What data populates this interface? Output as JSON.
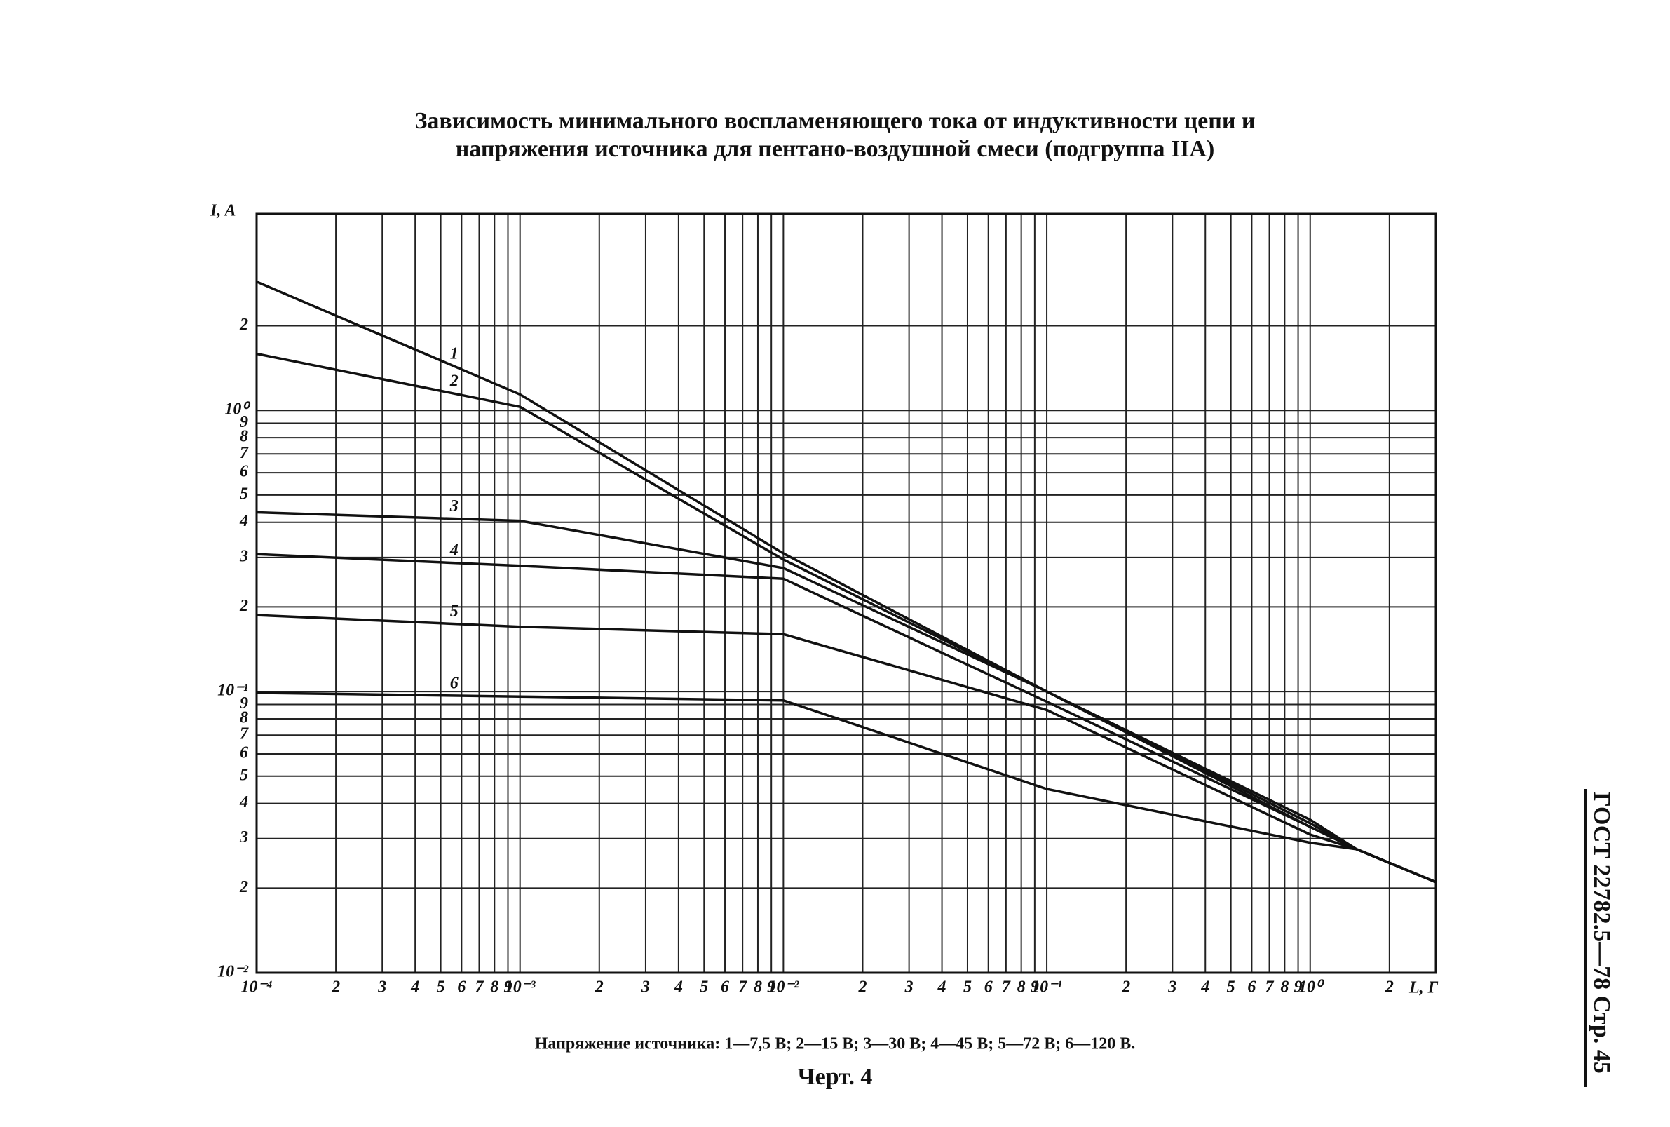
{
  "chart_data": {
    "type": "line",
    "title": "Зависимость минимального воспламеняющего тока от индуктивности цепи и",
    "subtitle": "напряжения источника для пентано-воздушной смеси (подгруппа IIA)",
    "y_label": "I, A",
    "x_label": "L, Г",
    "log_x": true,
    "log_y": true,
    "grid": true,
    "x": [
      0.0001,
      0.001,
      0.01,
      0.1,
      1,
      1.5,
      3
    ],
    "series": [
      {
        "name": "1",
        "color": "#111111",
        "values": [
          2.87,
          1.14,
          0.31,
          0.1,
          0.035,
          0.0275,
          0.021
        ]
      },
      {
        "name": "2",
        "color": "#111111",
        "values": [
          1.59,
          1.03,
          0.295,
          0.1,
          0.034,
          0.0275,
          0.021
        ]
      },
      {
        "name": "3",
        "color": "#111111",
        "values": [
          0.434,
          0.405,
          0.275,
          0.1,
          0.033,
          0.0275,
          0.021
        ]
      },
      {
        "name": "4",
        "color": "#111111",
        "values": [
          0.308,
          0.28,
          0.252,
          0.092,
          0.033,
          0.0275,
          0.021
        ]
      },
      {
        "name": "5",
        "color": "#111111",
        "values": [
          0.187,
          0.17,
          0.16,
          0.086,
          0.031,
          0.0275,
          0.021
        ]
      },
      {
        "name": "6",
        "color": "#111111",
        "values": [
          0.099,
          0.096,
          0.093,
          0.045,
          0.029,
          0.0275,
          0.021
        ]
      }
    ],
    "xlim": [
      0.0001,
      3
    ],
    "ylim": [
      0.01,
      5
    ],
    "xticks": [
      {
        "value": 0.0001,
        "label": "10⁻⁴"
      },
      {
        "value": 0.0002,
        "label": "2"
      },
      {
        "value": 0.0003,
        "label": "3"
      },
      {
        "value": 0.0004,
        "label": "4"
      },
      {
        "value": 0.0005,
        "label": "5"
      },
      {
        "value": 0.0006,
        "label": "6"
      },
      {
        "value": 0.0007,
        "label": "7"
      },
      {
        "value": 0.0008,
        "label": "8"
      },
      {
        "value": 0.0009,
        "label": "9"
      },
      {
        "value": 0.001,
        "label": "10⁻³"
      },
      {
        "value": 0.002,
        "label": "2"
      },
      {
        "value": 0.003,
        "label": "3"
      },
      {
        "value": 0.004,
        "label": "4"
      },
      {
        "value": 0.005,
        "label": "5"
      },
      {
        "value": 0.006,
        "label": "6"
      },
      {
        "value": 0.007,
        "label": "7"
      },
      {
        "value": 0.008,
        "label": "8"
      },
      {
        "value": 0.009,
        "label": "9"
      },
      {
        "value": 0.01,
        "label": "10⁻²"
      },
      {
        "value": 0.02,
        "label": "2"
      },
      {
        "value": 0.03,
        "label": "3"
      },
      {
        "value": 0.04,
        "label": "4"
      },
      {
        "value": 0.05,
        "label": "5"
      },
      {
        "value": 0.06,
        "label": "6"
      },
      {
        "value": 0.07,
        "label": "7"
      },
      {
        "value": 0.08,
        "label": "8"
      },
      {
        "value": 0.09,
        "label": "9"
      },
      {
        "value": 0.1,
        "label": "10⁻¹"
      },
      {
        "value": 0.2,
        "label": "2"
      },
      {
        "value": 0.3,
        "label": "3"
      },
      {
        "value": 0.4,
        "label": "4"
      },
      {
        "value": 0.5,
        "label": "5"
      },
      {
        "value": 0.6,
        "label": "6"
      },
      {
        "value": 0.7,
        "label": "7"
      },
      {
        "value": 0.8,
        "label": "8"
      },
      {
        "value": 0.9,
        "label": "9"
      },
      {
        "value": 1,
        "label": "10⁰"
      },
      2
    ],
    "yticks": [
      {
        "value": 0.01,
        "label": "10⁻²"
      },
      {
        "value": 0.02,
        "label": "2"
      },
      {
        "value": 0.03,
        "label": "3"
      },
      {
        "value": 0.04,
        "label": "4"
      },
      {
        "value": 0.05,
        "label": "5"
      },
      {
        "value": 0.06,
        "label": "6"
      },
      {
        "value": 0.07,
        "label": "7"
      },
      {
        "value": 0.08,
        "label": "8"
      },
      {
        "value": 0.09,
        "label": "9"
      },
      {
        "value": 0.1,
        "label": "10⁻¹"
      },
      {
        "value": 0.2,
        "label": "2"
      },
      {
        "value": 0.3,
        "label": "3"
      },
      {
        "value": 0.4,
        "label": "4"
      },
      {
        "value": 0.5,
        "label": "5"
      },
      {
        "value": 0.6,
        "label": "6"
      },
      {
        "value": 0.7,
        "label": "7"
      },
      {
        "value": 0.8,
        "label": "8"
      },
      {
        "value": 0.9,
        "label": "9"
      },
      {
        "value": 1,
        "label": "10⁰"
      },
      2
    ],
    "caption": "Напряжение источника: 1—7,5 В; 2—15 В; 3—30 В; 4—45 В; 5—72 В; 6—120 В.",
    "figure_label": "Черт. 4",
    "page_header": "ГОСТ 22782.5—78 Стр. 45"
  }
}
